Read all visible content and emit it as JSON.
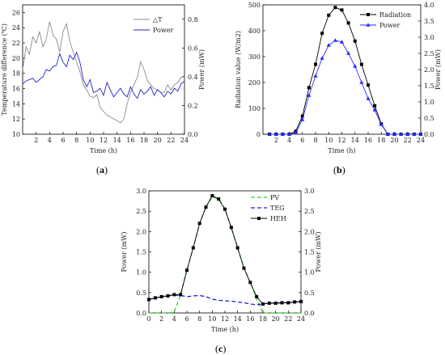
{
  "panel_labels": {
    "a": "a",
    "b": "b",
    "c": "c"
  },
  "chart_data": [
    {
      "id": "a",
      "type": "line",
      "xlabel": "Time (h)",
      "ylabel_left": "Temperature difference (℃)",
      "ylabel_right": "Power (mW)",
      "xlim": [
        0,
        24
      ],
      "ylim_left": [
        10,
        27
      ],
      "ylim_right": [
        0,
        0.9
      ],
      "xticks": [
        2,
        4,
        6,
        8,
        10,
        12,
        14,
        16,
        18,
        20,
        22,
        24
      ],
      "yticks_left": [
        10,
        12,
        14,
        16,
        18,
        20,
        22,
        24,
        26
      ],
      "yticks_right": [
        0.0,
        0.2,
        0.4,
        0.6,
        0.8
      ],
      "legend_position": "top-right",
      "series": [
        {
          "name": "△T",
          "axis": "left",
          "color": "#8c8c8c",
          "x": [
            0,
            0.5,
            1,
            1.5,
            2,
            2.5,
            3,
            3.5,
            4,
            4.5,
            5,
            5.5,
            6,
            6.5,
            7,
            7.5,
            8,
            8.5,
            9,
            9.5,
            10,
            10.5,
            11,
            11.5,
            12,
            12.5,
            13,
            13.5,
            14,
            14.5,
            15,
            15.5,
            16,
            16.5,
            17,
            17.5,
            18,
            18.5,
            19,
            19.5,
            20,
            20.5,
            21,
            21.5,
            22,
            22.5,
            23,
            23.5,
            24
          ],
          "y": [
            18.5,
            21.5,
            20.5,
            22.8,
            22.0,
            23.5,
            21.5,
            22.5,
            24.8,
            23.0,
            22.5,
            20.8,
            23.5,
            24.5,
            22.2,
            20.8,
            19.5,
            18.2,
            16.5,
            15.8,
            15.0,
            14.8,
            15.2,
            13.5,
            13.0,
            12.5,
            12.3,
            12.0,
            11.8,
            11.5,
            12.0,
            14.0,
            15.5,
            16.5,
            17.5,
            19.5,
            18.5,
            17.0,
            16.5,
            16.0,
            15.8,
            15.5,
            15.5,
            16.5,
            15.8,
            16.5,
            16.8,
            17.5,
            17.5
          ]
        },
        {
          "name": "Power",
          "axis": "right",
          "color": "#2323c8",
          "x": [
            0,
            0.5,
            1,
            1.5,
            2,
            2.5,
            3,
            3.5,
            4,
            4.5,
            5,
            5.5,
            6,
            6.5,
            7,
            7.5,
            8,
            8.5,
            9,
            9.5,
            10,
            10.5,
            11,
            11.5,
            12,
            12.5,
            13,
            13.5,
            14,
            14.5,
            15,
            15.5,
            16,
            16.5,
            17,
            17.5,
            18,
            18.5,
            19,
            19.5,
            20,
            20.5,
            21,
            21.5,
            22,
            22.5,
            23,
            23.5,
            24
          ],
          "y": [
            0.35,
            0.37,
            0.38,
            0.39,
            0.36,
            0.38,
            0.4,
            0.45,
            0.44,
            0.47,
            0.48,
            0.56,
            0.5,
            0.47,
            0.55,
            0.52,
            0.57,
            0.5,
            0.38,
            0.33,
            0.38,
            0.29,
            0.3,
            0.32,
            0.27,
            0.36,
            0.31,
            0.26,
            0.29,
            0.32,
            0.28,
            0.26,
            0.33,
            0.28,
            0.25,
            0.31,
            0.28,
            0.3,
            0.33,
            0.27,
            0.31,
            0.29,
            0.26,
            0.3,
            0.28,
            0.32,
            0.3,
            0.35,
            0.37
          ]
        }
      ]
    },
    {
      "id": "b",
      "type": "line",
      "xlabel": "Time (h)",
      "ylabel_left": "Radiation value (W/m2)",
      "ylabel_right": "Power (mW)",
      "xlim": [
        0,
        24
      ],
      "ylim_left": [
        0,
        500
      ],
      "ylim_right": [
        0,
        4.0
      ],
      "xticks": [
        2,
        4,
        6,
        8,
        10,
        12,
        14,
        16,
        18,
        20,
        22,
        24
      ],
      "yticks_left": [
        0,
        100,
        200,
        300,
        400,
        500
      ],
      "yticks_right": [
        0.0,
        0.5,
        1.0,
        1.5,
        2.0,
        2.5,
        3.0,
        3.5,
        4.0
      ],
      "legend_position": "top-right",
      "series": [
        {
          "name": "Radiation",
          "axis": "left",
          "color": "#000000",
          "marker": "square",
          "x": [
            1,
            2,
            3,
            4,
            5,
            6,
            7,
            8,
            9,
            10,
            11,
            12,
            13,
            14,
            15,
            16,
            17,
            18,
            19,
            20,
            21,
            22,
            23,
            24
          ],
          "y": [
            0,
            0,
            0,
            0,
            12,
            70,
            180,
            270,
            390,
            460,
            490,
            480,
            430,
            360,
            270,
            190,
            110,
            40,
            0,
            0,
            0,
            0,
            0,
            0
          ]
        },
        {
          "name": "Power",
          "axis": "right",
          "color": "#2a2aff",
          "marker": "triangle",
          "x": [
            1,
            2,
            3,
            4,
            5,
            6,
            7,
            8,
            9,
            10,
            11,
            12,
            13,
            14,
            15,
            16,
            17,
            18,
            19,
            20,
            21,
            22,
            23,
            24
          ],
          "y": [
            0,
            0,
            0,
            0,
            0.05,
            0.45,
            1.2,
            1.8,
            2.35,
            2.75,
            2.9,
            2.85,
            2.5,
            2.1,
            1.6,
            1.1,
            0.75,
            0.3,
            0,
            0,
            0,
            0,
            0,
            0
          ]
        }
      ]
    },
    {
      "id": "c",
      "type": "line",
      "xlabel": "Time (h)",
      "ylabel_left": "Power (mW)",
      "ylabel_right": "Power (mW)",
      "xlim": [
        0,
        24
      ],
      "ylim_left": [
        0,
        3.0
      ],
      "ylim_right": [
        0,
        3.0
      ],
      "xticks": [
        0,
        2,
        4,
        6,
        8,
        10,
        12,
        14,
        16,
        18,
        20,
        22,
        24
      ],
      "yticks_left": [
        0.0,
        0.5,
        1.0,
        1.5,
        2.0,
        2.5,
        3.0
      ],
      "yticks_right": [
        0.0,
        0.5,
        1.0,
        1.5,
        2.0,
        2.5,
        3.0
      ],
      "legend_position": "top-right",
      "series": [
        {
          "name": "PV",
          "color": "#33cc33",
          "dash": true,
          "x": [
            0,
            1,
            2,
            3,
            4,
            5,
            6,
            7,
            8,
            9,
            10,
            11,
            12,
            13,
            14,
            15,
            16,
            17,
            18,
            19,
            20,
            21,
            22,
            23,
            24
          ],
          "y": [
            0,
            0,
            0,
            0,
            0.02,
            0.45,
            1.05,
            1.6,
            2.2,
            2.6,
            2.85,
            2.8,
            2.55,
            2.1,
            1.6,
            1.1,
            0.75,
            0.35,
            0,
            0,
            0,
            0,
            0,
            0,
            0
          ]
        },
        {
          "name": "TEG",
          "color": "#1f1fd6",
          "dash": true,
          "x": [
            0,
            1,
            2,
            3,
            4,
            5,
            6,
            7,
            8,
            9,
            10,
            11,
            12,
            13,
            14,
            15,
            16,
            17,
            18,
            19,
            20,
            21,
            22,
            23,
            24
          ],
          "y": [
            0.33,
            0.37,
            0.4,
            0.42,
            0.44,
            0.43,
            0.4,
            0.42,
            0.43,
            0.4,
            0.34,
            0.31,
            0.3,
            0.29,
            0.27,
            0.25,
            0.22,
            0.2,
            0.22,
            0.24,
            0.24,
            0.25,
            0.25,
            0.27,
            0.28
          ]
        },
        {
          "name": "HEH",
          "color": "#000000",
          "marker": "square",
          "x": [
            0,
            1,
            2,
            3,
            4,
            5,
            6,
            7,
            8,
            9,
            10,
            11,
            12,
            13,
            14,
            15,
            16,
            17,
            18,
            19,
            20,
            21,
            22,
            23,
            24
          ],
          "y": [
            0.33,
            0.37,
            0.4,
            0.42,
            0.45,
            0.45,
            1.05,
            1.6,
            2.2,
            2.6,
            2.88,
            2.8,
            2.55,
            2.1,
            1.6,
            1.1,
            0.75,
            0.4,
            0.22,
            0.24,
            0.24,
            0.25,
            0.25,
            0.27,
            0.28
          ]
        }
      ]
    }
  ]
}
